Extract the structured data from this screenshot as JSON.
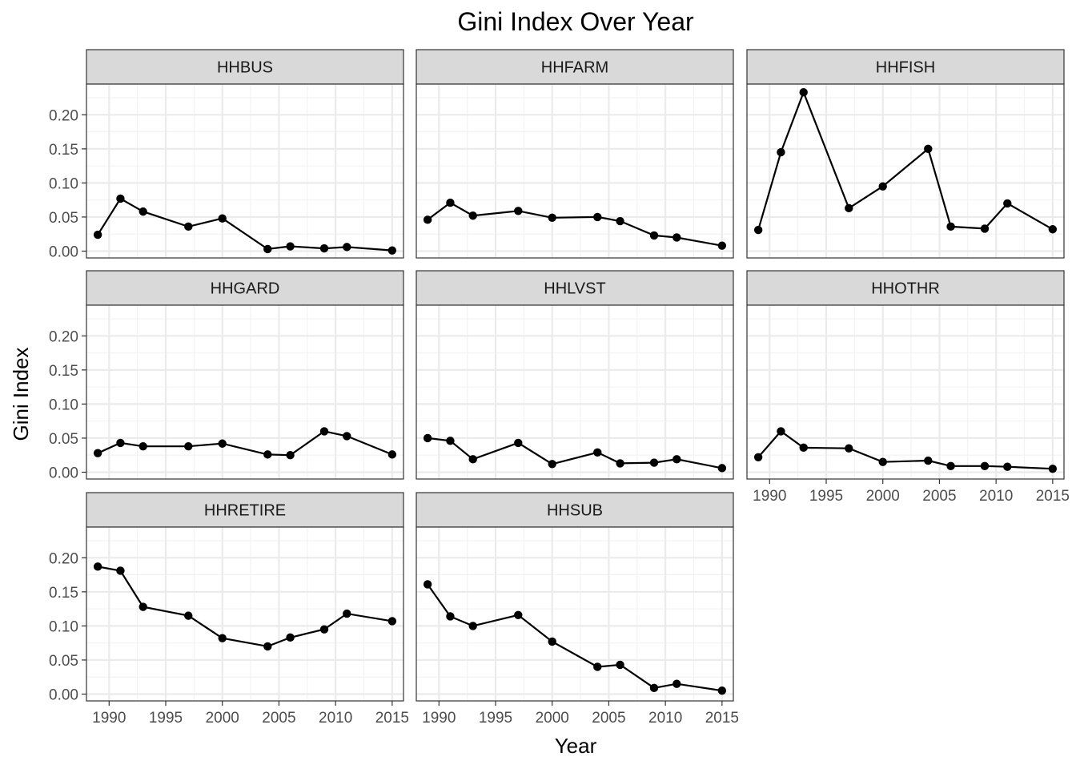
{
  "chart_data": {
    "type": "line",
    "title": "Gini Index Over Year",
    "xlabel": "Year",
    "ylabel": "Gini Index",
    "xlim": [
      1988,
      2016
    ],
    "ylim": [
      -0.01,
      0.245
    ],
    "x_ticks": [
      1990,
      1995,
      2000,
      2005,
      2010,
      2015
    ],
    "y_ticks": [
      0.0,
      0.05,
      0.1,
      0.15,
      0.2
    ],
    "y_tick_labels": [
      "0.00",
      "0.05",
      "0.10",
      "0.15",
      "0.20"
    ],
    "x": [
      1989,
      1991,
      1993,
      1997,
      2000,
      2004,
      2006,
      2009,
      2011,
      2015
    ],
    "grid": true,
    "facets": [
      {
        "name": "HHBUS",
        "values": [
          0.024,
          0.077,
          0.058,
          0.036,
          0.048,
          0.003,
          0.007,
          0.004,
          0.006,
          0.001
        ]
      },
      {
        "name": "HHFARM",
        "values": [
          0.046,
          0.071,
          0.052,
          0.059,
          0.049,
          0.05,
          0.044,
          0.023,
          0.02,
          0.008
        ]
      },
      {
        "name": "HHFISH",
        "values": [
          0.031,
          0.145,
          0.233,
          0.063,
          0.095,
          0.15,
          0.036,
          0.033,
          0.07,
          0.032
        ]
      },
      {
        "name": "HHGARD",
        "values": [
          0.028,
          0.043,
          0.038,
          0.038,
          0.042,
          0.026,
          0.025,
          0.06,
          0.053,
          0.026
        ]
      },
      {
        "name": "HHLVST",
        "values": [
          0.05,
          0.046,
          0.019,
          0.043,
          0.012,
          0.029,
          0.013,
          0.014,
          0.019,
          0.006
        ]
      },
      {
        "name": "HHOTHR",
        "values": [
          0.022,
          0.06,
          0.036,
          0.035,
          0.015,
          0.017,
          0.009,
          0.009,
          0.008,
          0.005
        ]
      },
      {
        "name": "HHRETIRE",
        "values": [
          0.187,
          0.181,
          0.128,
          0.115,
          0.082,
          0.07,
          0.083,
          0.095,
          0.118,
          0.107
        ]
      },
      {
        "name": "HHSUB",
        "values": [
          0.161,
          0.114,
          0.1,
          0.116,
          0.077,
          0.04,
          0.043,
          0.009,
          0.015,
          0.005
        ]
      }
    ]
  }
}
